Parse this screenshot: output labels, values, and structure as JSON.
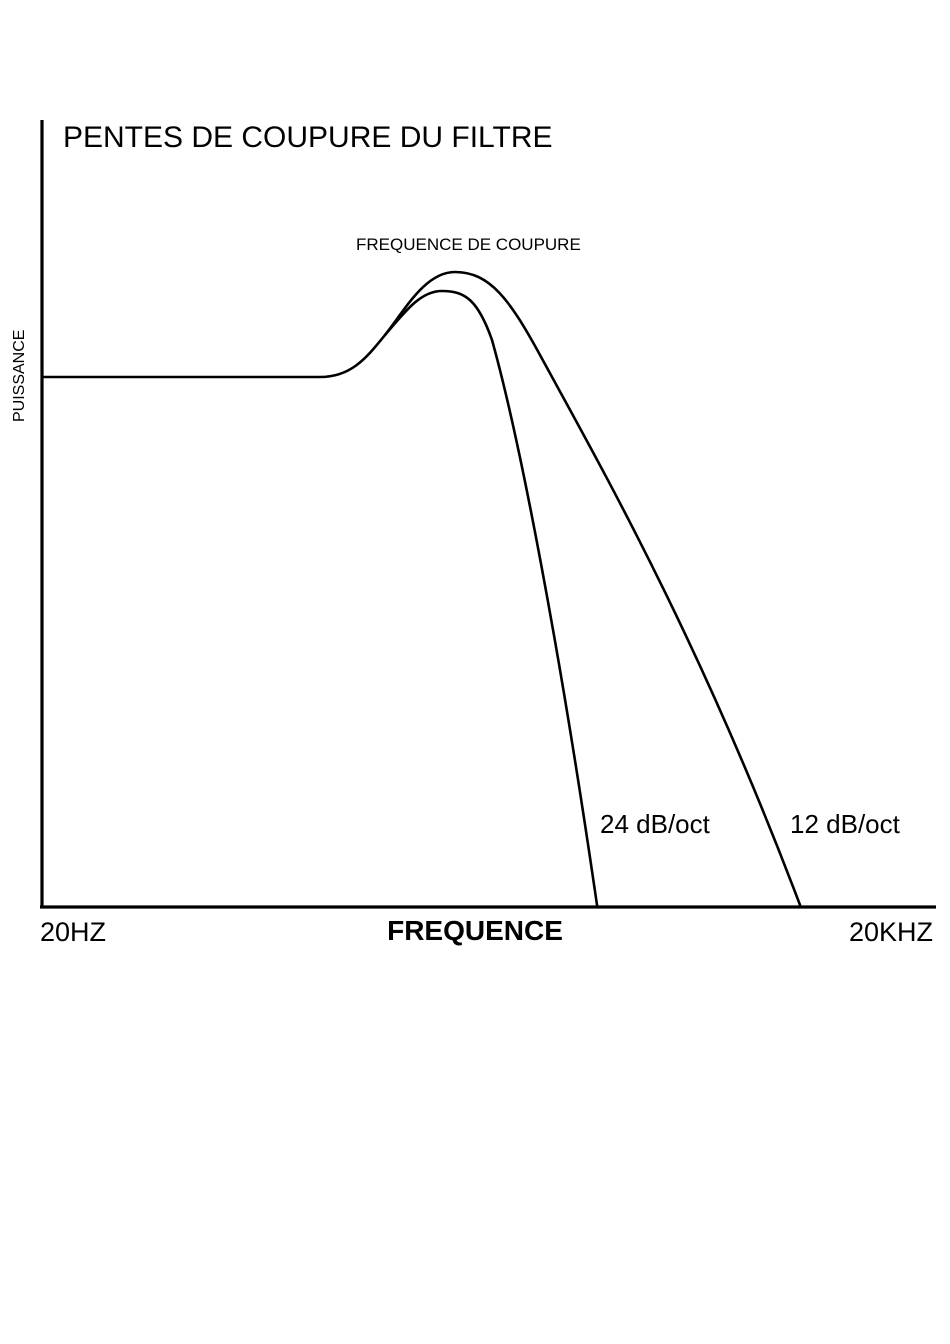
{
  "title": "PENTES DE COUPURE DU FILTRE",
  "annotation": "FREQUENCE DE COUPURE",
  "y_axis_label": "PUISSANCE",
  "x_axis_label": "FREQUENCE",
  "x_axis_start": "20HZ",
  "x_axis_end": "20KHZ",
  "curves": [
    {
      "label": "24 dB/oct"
    },
    {
      "label": "12 dB/oct"
    }
  ]
}
